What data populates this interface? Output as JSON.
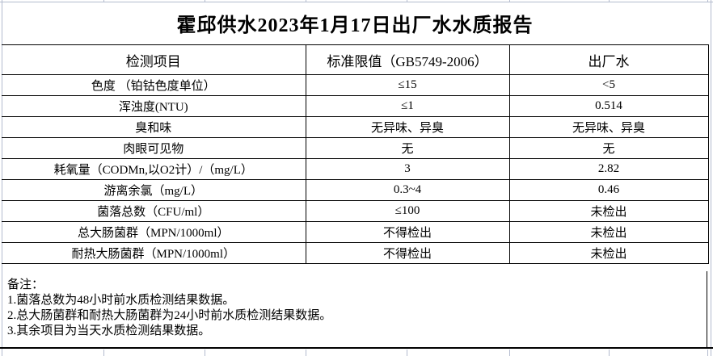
{
  "title": "霍邱供水2023年1月17日出厂水水质报告",
  "table": {
    "columns": [
      "检测项目",
      "标准限值（GB5749-2006）",
      "出厂水"
    ],
    "rows": [
      {
        "item": "色度 （铂钴色度单位）",
        "limit": "≤15",
        "outflow": "<5"
      },
      {
        "item": "浑浊度(NTU)",
        "limit": "≤1",
        "outflow": "0.514"
      },
      {
        "item": "臭和味",
        "limit": "无异味、异臭",
        "outflow": "无异味、异臭"
      },
      {
        "item": "肉眼可见物",
        "limit": "无",
        "outflow": "无"
      },
      {
        "item": "耗氧量（CODMn,以O2计）/（mg/L）",
        "limit": "3",
        "outflow": "2.82"
      },
      {
        "item": "游离余氯（mg/L）",
        "limit": "0.3~4",
        "outflow": "0.46"
      },
      {
        "item": "菌落总数（CFU/ml）",
        "limit": "≤100",
        "outflow": "未检出"
      },
      {
        "item": "总大肠菌群（MPN/1000ml）",
        "limit": "不得检出",
        "outflow": "未检出"
      },
      {
        "item": "耐热大肠菌群（MPN/1000ml）",
        "limit": "不得检出",
        "outflow": "未检出"
      }
    ]
  },
  "notes": {
    "label": "备注：",
    "lines": [
      "1.菌落总数为48小时前水质检测结果数据。",
      "2.总大肠菌群和耐热大肠菌群为24小时前水质检测结果数据。",
      "3.其余项目为当天水质检测结果数据。"
    ]
  },
  "colors": {
    "background": "#ffffff",
    "text": "#000000",
    "table_border": "#000000",
    "sheet_gridline": "#b3bbce"
  }
}
